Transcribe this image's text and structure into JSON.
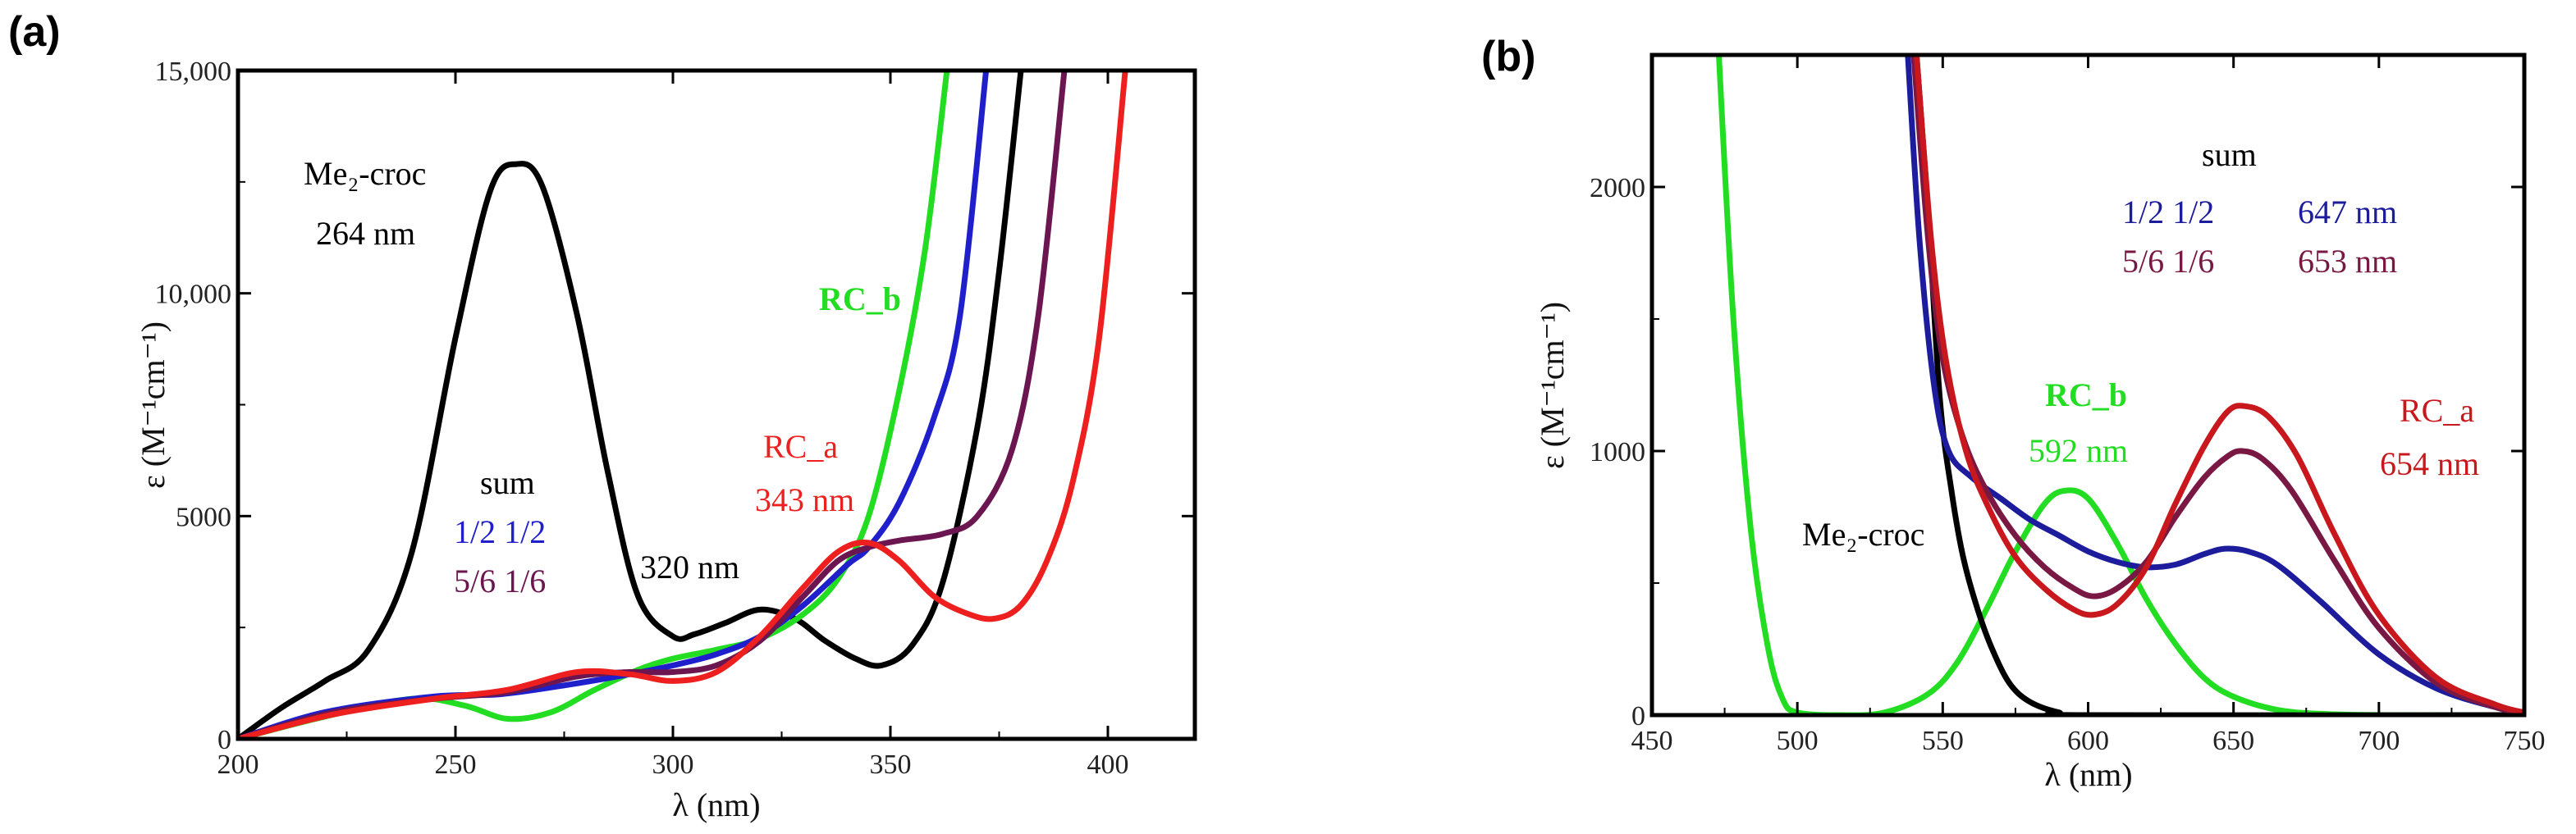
{
  "colors": {
    "black": "#000000",
    "green": "#22dd22",
    "blue": "#1f1fcc",
    "purple": "#6b1650",
    "red": "#ee1f1f",
    "navy": "#1c1c9c",
    "darkred": "#c8181e",
    "maroon": "#7a1844"
  },
  "chart_data": [
    {
      "panel": "(a)",
      "type": "line",
      "xlabel": "λ (nm)",
      "ylabel": "ε (M⁻¹cm⁻¹)",
      "xlim": [
        200,
        420
      ],
      "ylim": [
        0,
        15000
      ],
      "x_ticks": [
        200,
        250,
        300,
        350,
        400
      ],
      "y_ticks": [
        0,
        5000,
        10000,
        15000
      ],
      "y_tick_labels": [
        "0",
        "5000",
        "10,000",
        "15,000"
      ],
      "annotations": {
        "me2croc": "Me₂-croc",
        "me2croc_peak": "264 nm",
        "shoulder": "320 nm",
        "rcb": "RC_b",
        "rca": "RC_a",
        "rca_peak": "343 nm",
        "sum": "sum",
        "sum_half": "1/2 1/2",
        "sum_56": "5/6 1/6"
      },
      "series": [
        {
          "name": "Me2-croc",
          "color": "black",
          "points": [
            [
              200,
              0
            ],
            [
              210,
              700
            ],
            [
              220,
              1300
            ],
            [
              230,
              2000
            ],
            [
              240,
              4200
            ],
            [
              250,
              9000
            ],
            [
              258,
              12300
            ],
            [
              264,
              12900
            ],
            [
              270,
              12400
            ],
            [
              278,
              9500
            ],
            [
              285,
              6000
            ],
            [
              292,
              3200
            ],
            [
              300,
              2300
            ],
            [
              305,
              2350
            ],
            [
              312,
              2600
            ],
            [
              320,
              2900
            ],
            [
              328,
              2700
            ],
            [
              335,
              2200
            ],
            [
              342,
              1800
            ],
            [
              348,
              1650
            ],
            [
              355,
              2100
            ],
            [
              362,
              3500
            ],
            [
              370,
              7000
            ],
            [
              375,
              10500
            ],
            [
              380,
              15000
            ]
          ]
        },
        {
          "name": "RCb",
          "color": "green",
          "points": [
            [
              200,
              0
            ],
            [
              220,
              500
            ],
            [
              240,
              900
            ],
            [
              252,
              750
            ],
            [
              262,
              450
            ],
            [
              272,
              600
            ],
            [
              282,
              1100
            ],
            [
              292,
              1550
            ],
            [
              300,
              1800
            ],
            [
              310,
              2000
            ],
            [
              320,
              2250
            ],
            [
              330,
              2800
            ],
            [
              338,
              3600
            ],
            [
              345,
              5000
            ],
            [
              352,
              7800
            ],
            [
              358,
              11000
            ],
            [
              363,
              15000
            ]
          ]
        },
        {
          "name": "sum 1/2 1/2",
          "color": "blue",
          "points": [
            [
              200,
              0
            ],
            [
              220,
              600
            ],
            [
              245,
              950
            ],
            [
              260,
              1000
            ],
            [
              275,
              1200
            ],
            [
              290,
              1450
            ],
            [
              300,
              1650
            ],
            [
              310,
              1900
            ],
            [
              320,
              2300
            ],
            [
              330,
              3000
            ],
            [
              340,
              3900
            ],
            [
              345,
              4300
            ],
            [
              352,
              5300
            ],
            [
              360,
              7200
            ],
            [
              366,
              9500
            ],
            [
              372,
              15000
            ]
          ]
        },
        {
          "name": "sum 5/6 1/6",
          "color": "purple",
          "points": [
            [
              200,
              0
            ],
            [
              222,
              600
            ],
            [
              245,
              900
            ],
            [
              262,
              1050
            ],
            [
              278,
              1400
            ],
            [
              290,
              1500
            ],
            [
              300,
              1500
            ],
            [
              310,
              1650
            ],
            [
              320,
              2200
            ],
            [
              330,
              3200
            ],
            [
              338,
              4000
            ],
            [
              345,
              4300
            ],
            [
              352,
              4450
            ],
            [
              362,
              4600
            ],
            [
              370,
              5000
            ],
            [
              378,
              6500
            ],
            [
              384,
              9500
            ],
            [
              390,
              15000
            ]
          ]
        },
        {
          "name": "RCa",
          "color": "red",
          "points": [
            [
              200,
              0
            ],
            [
              222,
              550
            ],
            [
              245,
              900
            ],
            [
              262,
              1100
            ],
            [
              278,
              1500
            ],
            [
              290,
              1450
            ],
            [
              300,
              1300
            ],
            [
              310,
              1500
            ],
            [
              320,
              2300
            ],
            [
              330,
              3400
            ],
            [
              338,
              4200
            ],
            [
              345,
              4400
            ],
            [
              352,
              4000
            ],
            [
              360,
              3200
            ],
            [
              368,
              2800
            ],
            [
              374,
              2700
            ],
            [
              380,
              3000
            ],
            [
              386,
              4000
            ],
            [
              392,
              5800
            ],
            [
              398,
              9000
            ],
            [
              404,
              15000
            ]
          ]
        }
      ]
    },
    {
      "panel": "(b)",
      "type": "line",
      "xlabel": "λ (nm)",
      "ylabel": "ε (M⁻¹cm⁻¹)",
      "xlim": [
        450,
        750
      ],
      "ylim": [
        0,
        2500
      ],
      "x_ticks": [
        450,
        500,
        550,
        600,
        650,
        700,
        750
      ],
      "y_ticks": [
        0,
        1000,
        2000
      ],
      "y_tick_labels": [
        "0",
        "1000",
        "2000"
      ],
      "annotations": {
        "sum": "sum",
        "sum_half": "1/2 1/2",
        "sum_half_peak": "647 nm",
        "sum_56": "5/6 1/6",
        "sum_56_peak": "653 nm",
        "rcb": "RC_b",
        "rcb_peak": "592 nm",
        "rca": "RC_a",
        "rca_peak": "654 nm",
        "me2croc": "Me₂-croc"
      },
      "series": [
        {
          "name": "RCb",
          "color": "green",
          "points": [
            [
              473,
              2500
            ],
            [
              478,
              1500
            ],
            [
              484,
              700
            ],
            [
              490,
              250
            ],
            [
              495,
              60
            ],
            [
              500,
              10
            ],
            [
              515,
              0
            ],
            [
              530,
              10
            ],
            [
              545,
              80
            ],
            [
              555,
              200
            ],
            [
              565,
              400
            ],
            [
              575,
              620
            ],
            [
              585,
              800
            ],
            [
              592,
              850
            ],
            [
              600,
              820
            ],
            [
              610,
              650
            ],
            [
              620,
              440
            ],
            [
              630,
              270
            ],
            [
              640,
              140
            ],
            [
              650,
              70
            ],
            [
              665,
              20
            ],
            [
              680,
              5
            ],
            [
              700,
              0
            ],
            [
              750,
              0
            ]
          ]
        },
        {
          "name": "Me2-croc",
          "color": "black",
          "points": [
            [
              541,
              2500
            ],
            [
              545,
              1900
            ],
            [
              549,
              1200
            ],
            [
              553,
              850
            ],
            [
              557,
              600
            ],
            [
              562,
              400
            ],
            [
              567,
              250
            ],
            [
              573,
              120
            ],
            [
              580,
              50
            ],
            [
              590,
              10
            ],
            [
              600,
              0
            ],
            [
              750,
              0
            ]
          ]
        },
        {
          "name": "sum 1/2 1/2",
          "color": "navy",
          "points": [
            [
              538,
              2500
            ],
            [
              542,
              1800
            ],
            [
              547,
              1250
            ],
            [
              552,
              1000
            ],
            [
              560,
              900
            ],
            [
              570,
              820
            ],
            [
              580,
              740
            ],
            [
              590,
              680
            ],
            [
              600,
              620
            ],
            [
              610,
              580
            ],
            [
              620,
              560
            ],
            [
              630,
              570
            ],
            [
              640,
              610
            ],
            [
              647,
              630
            ],
            [
              655,
              620
            ],
            [
              665,
              570
            ],
            [
              680,
              430
            ],
            [
              700,
              230
            ],
            [
              720,
              100
            ],
            [
              740,
              30
            ],
            [
              750,
              10
            ]
          ]
        },
        {
          "name": "sum 5/6 1/6",
          "color": "maroon",
          "points": [
            [
              540,
              2500
            ],
            [
              545,
              1800
            ],
            [
              550,
              1350
            ],
            [
              557,
              1050
            ],
            [
              565,
              850
            ],
            [
              575,
              680
            ],
            [
              585,
              560
            ],
            [
              595,
              480
            ],
            [
              602,
              450
            ],
            [
              610,
              480
            ],
            [
              620,
              580
            ],
            [
              630,
              750
            ],
            [
              640,
              900
            ],
            [
              648,
              980
            ],
            [
              653,
              1000
            ],
            [
              660,
              970
            ],
            [
              670,
              850
            ],
            [
              685,
              580
            ],
            [
              700,
              330
            ],
            [
              720,
              120
            ],
            [
              740,
              30
            ],
            [
              750,
              10
            ]
          ]
        },
        {
          "name": "RCa",
          "color": "darkred",
          "points": [
            [
              541,
              2500
            ],
            [
              546,
              1800
            ],
            [
              551,
              1350
            ],
            [
              558,
              1000
            ],
            [
              566,
              780
            ],
            [
              575,
              600
            ],
            [
              585,
              480
            ],
            [
              595,
              400
            ],
            [
              602,
              380
            ],
            [
              610,
              420
            ],
            [
              620,
              560
            ],
            [
              630,
              800
            ],
            [
              640,
              1020
            ],
            [
              648,
              1150
            ],
            [
              654,
              1170
            ],
            [
              662,
              1130
            ],
            [
              672,
              980
            ],
            [
              685,
              680
            ],
            [
              700,
              380
            ],
            [
              720,
              140
            ],
            [
              740,
              40
            ],
            [
              750,
              10
            ]
          ]
        }
      ]
    }
  ]
}
